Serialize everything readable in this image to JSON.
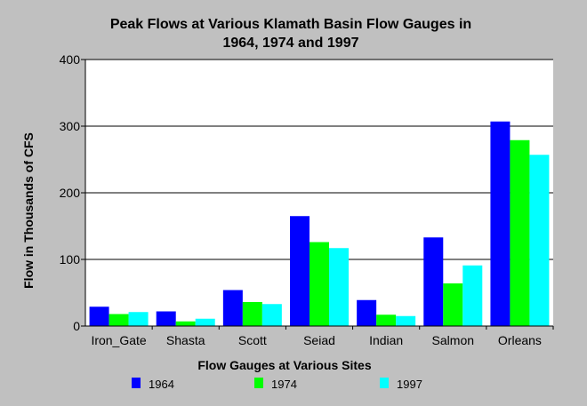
{
  "chart_data": {
    "type": "bar",
    "title_line1": "Peak Flows at Various Klamath Basin Flow Gauges in",
    "title_line2": "1964, 1974 and 1997",
    "xlabel": "Flow Gauges at Various Sites",
    "ylabel": "Flow in Thousands of CFS",
    "ylim": [
      0,
      400
    ],
    "yticks": [
      0,
      100,
      200,
      300,
      400
    ],
    "categories": [
      "Iron_Gate",
      "Shasta",
      "Scott",
      "Seiad",
      "Indian",
      "Salmon",
      "Orleans"
    ],
    "series": [
      {
        "name": "1964",
        "color": "#0000ff",
        "values": [
          29,
          22,
          54,
          165,
          39,
          133,
          307
        ]
      },
      {
        "name": "1974",
        "color": "#00ff00",
        "values": [
          18,
          7,
          36,
          126,
          17,
          64,
          279
        ]
      },
      {
        "name": "1997",
        "color": "#00ffff",
        "values": [
          21,
          11,
          33,
          117,
          15,
          91,
          257
        ]
      }
    ],
    "grid": true,
    "legend_position": "bottom"
  }
}
